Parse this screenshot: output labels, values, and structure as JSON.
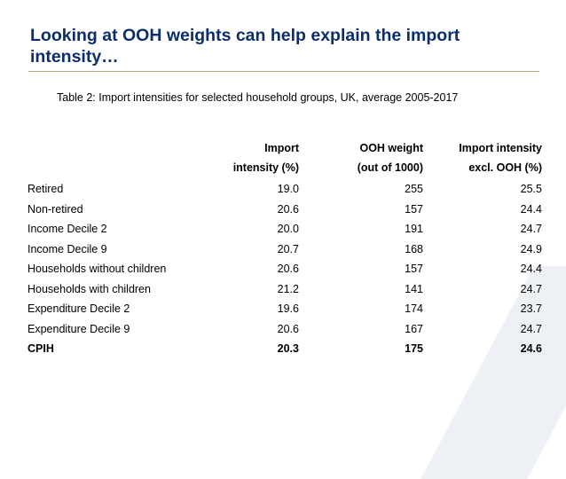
{
  "slide": {
    "title": "Looking at OOH weights can help explain the import intensity…",
    "caption": "Table 2: Import intensities for selected household groups, UK, average 2005-2017"
  },
  "table": {
    "headers": [
      {
        "line1": "",
        "line2": ""
      },
      {
        "line1": "Import",
        "line2": "intensity (%)"
      },
      {
        "line1": "OOH weight",
        "line2": "(out of 1000)"
      },
      {
        "line1": "Import intensity",
        "line2": "excl. OOH (%)"
      }
    ],
    "rows": [
      [
        "Retired",
        "19.0",
        "255",
        "25.5"
      ],
      [
        "Non-retired",
        "20.6",
        "157",
        "24.4"
      ],
      [
        "Income Decile 2",
        "20.0",
        "191",
        "24.7"
      ],
      [
        "Income Decile 9",
        "20.7",
        "168",
        "24.9"
      ],
      [
        "Households without children",
        "20.6",
        "157",
        "24.4"
      ],
      [
        "Households with children",
        "21.2",
        "141",
        "24.7"
      ],
      [
        "Expenditure Decile 2",
        "19.6",
        "174",
        "23.7"
      ],
      [
        "Expenditure Decile 9",
        "20.6",
        "167",
        "24.7"
      ],
      [
        "CPIH",
        "20.3",
        "175",
        "24.6"
      ]
    ]
  }
}
